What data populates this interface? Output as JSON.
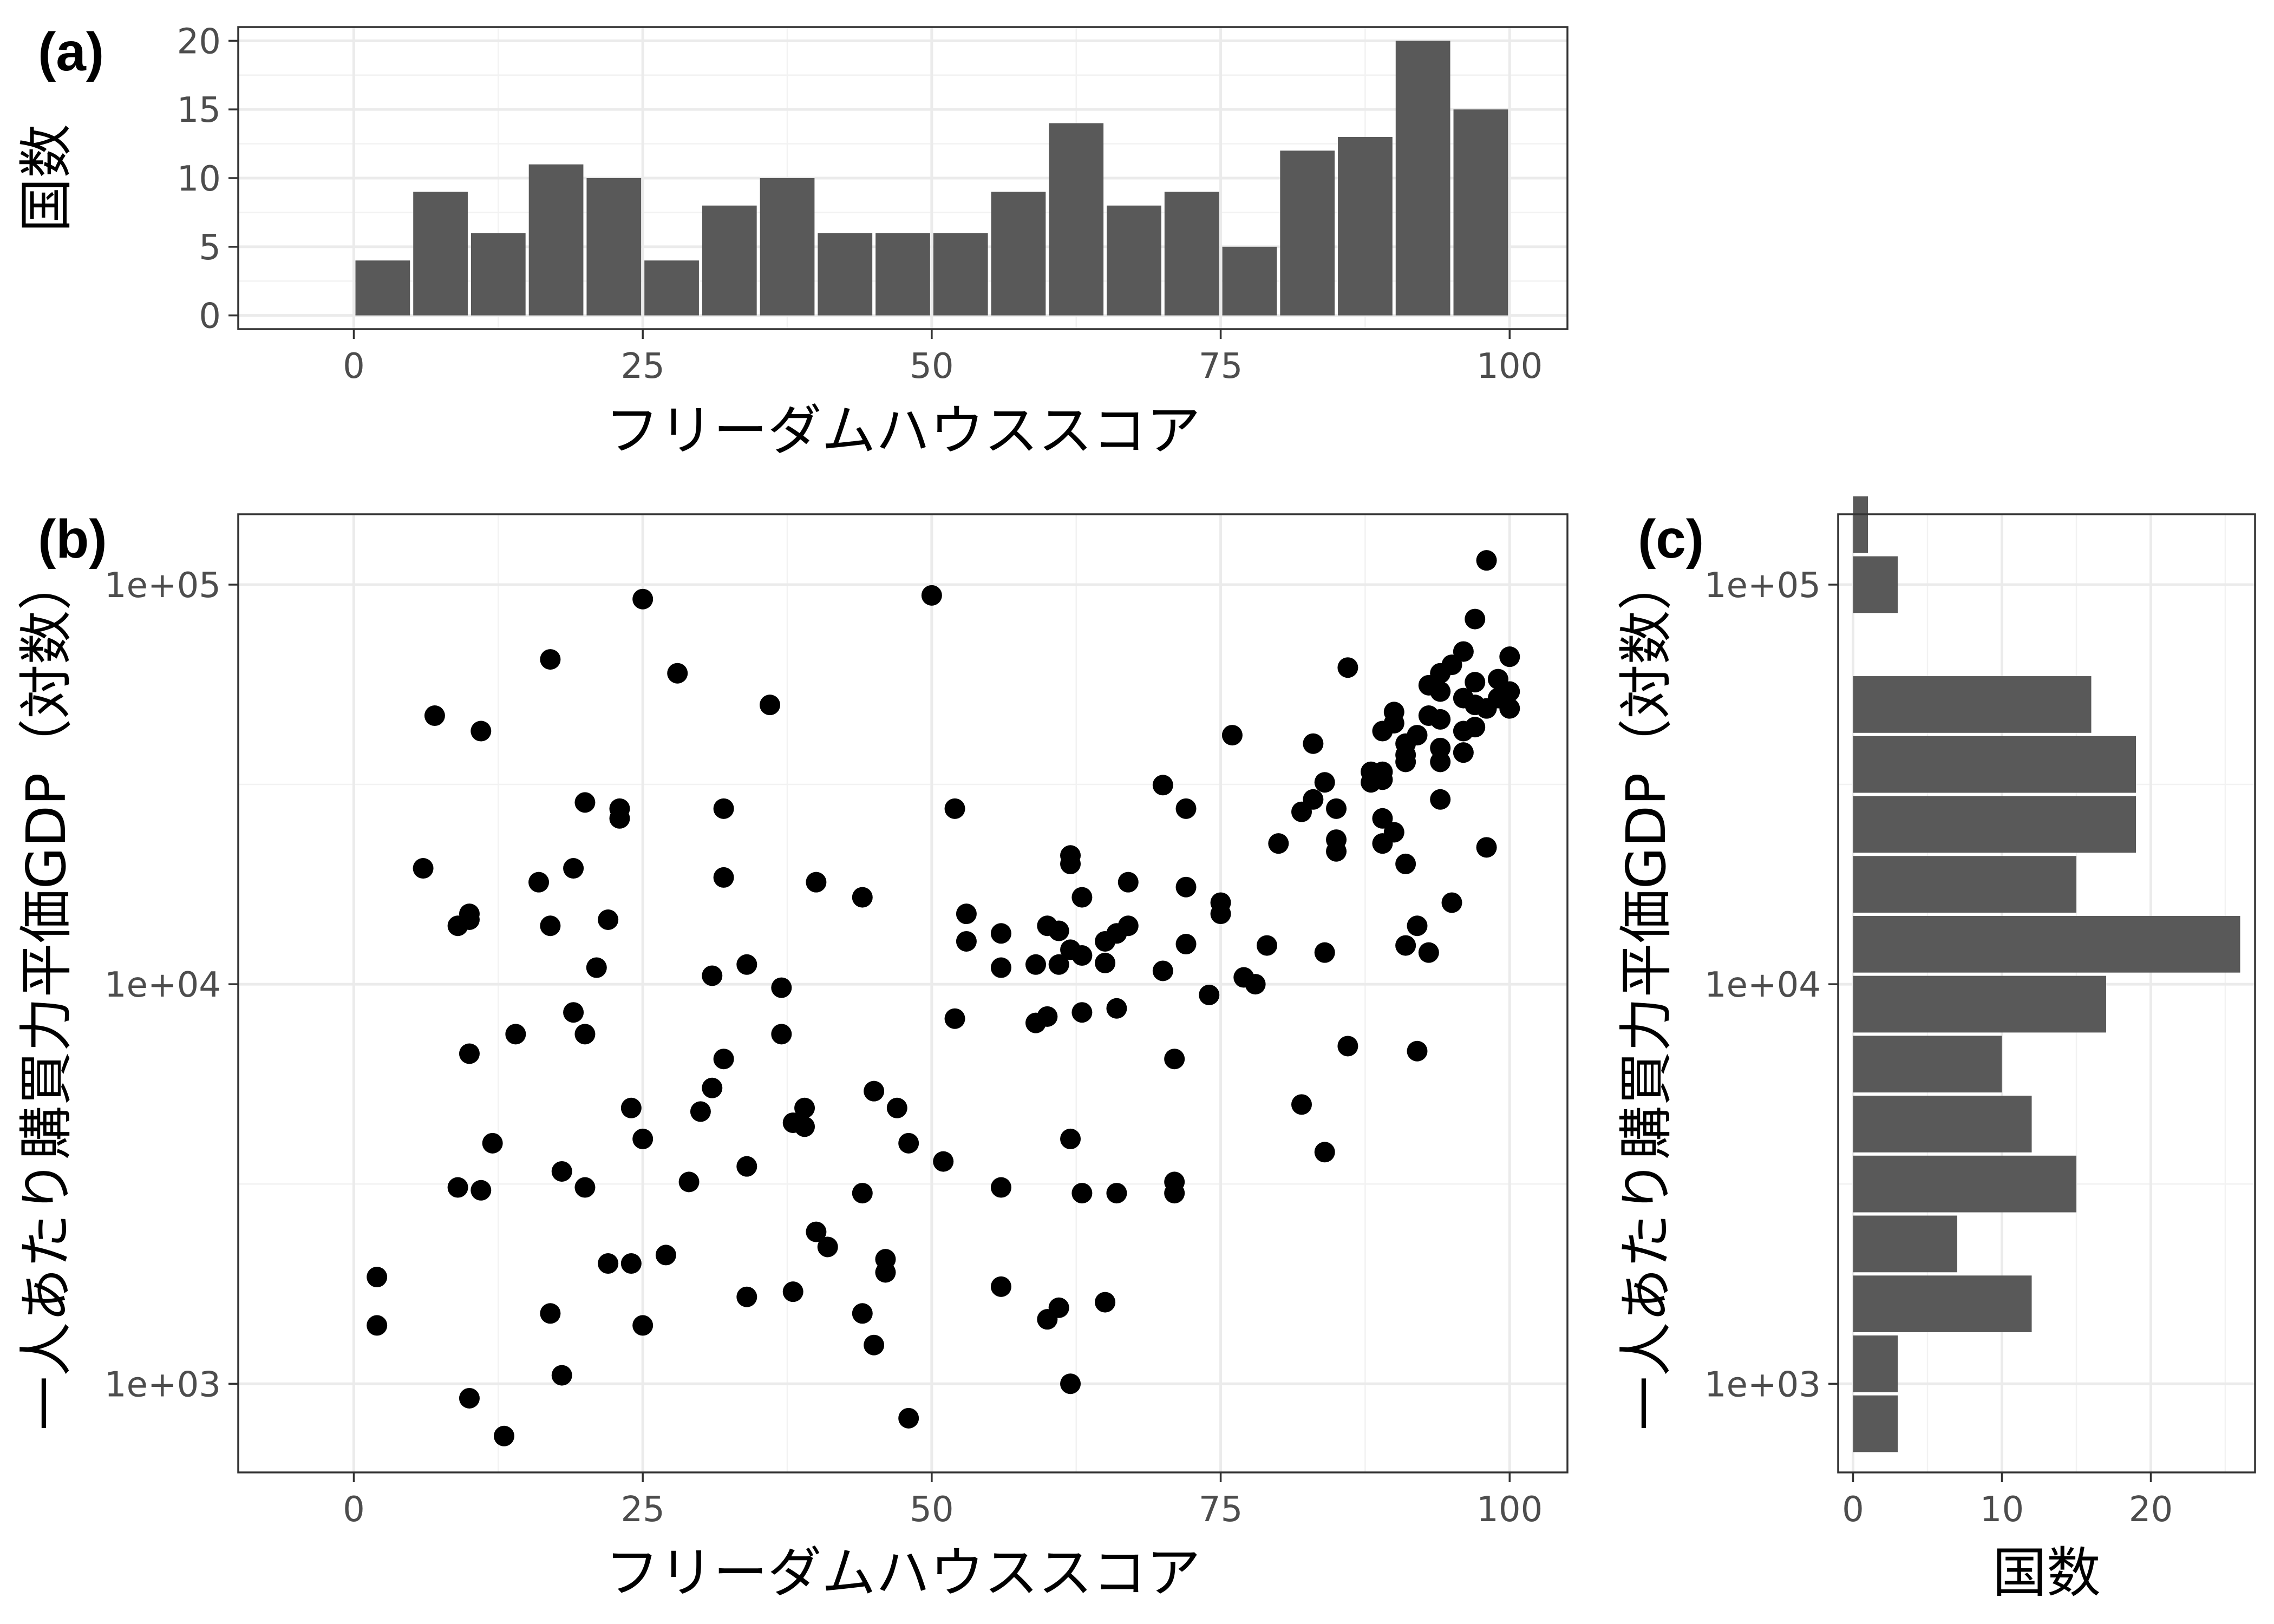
{
  "colors": {
    "bar": "#595959",
    "point": "#000000",
    "grid_major": "#ebebeb",
    "grid_minor": "#f2f2f2",
    "frame": "#333333",
    "tick_text": "#4d4d4d"
  },
  "chart_data": [
    {
      "panel_label": "(a)",
      "type": "bar",
      "xlabel": "フリーダムハウススコア",
      "ylabel": "国数",
      "xlim": [
        -10,
        105
      ],
      "ylim": [
        -1,
        21
      ],
      "x_ticks": [
        0,
        25,
        50,
        75,
        100
      ],
      "x_tick_labels": [
        "0",
        "25",
        "50",
        "75",
        "100"
      ],
      "y_ticks": [
        0,
        5,
        10,
        15,
        20
      ],
      "y_tick_labels": [
        "0",
        "5",
        "10",
        "15",
        "20"
      ],
      "bin_width": 5,
      "bins": [
        {
          "x0": 0,
          "x1": 5,
          "count": 4
        },
        {
          "x0": 5,
          "x1": 10,
          "count": 9
        },
        {
          "x0": 10,
          "x1": 15,
          "count": 6
        },
        {
          "x0": 15,
          "x1": 20,
          "count": 11
        },
        {
          "x0": 20,
          "x1": 25,
          "count": 10
        },
        {
          "x0": 25,
          "x1": 30,
          "count": 4
        },
        {
          "x0": 30,
          "x1": 35,
          "count": 8
        },
        {
          "x0": 35,
          "x1": 40,
          "count": 10
        },
        {
          "x0": 40,
          "x1": 45,
          "count": 6
        },
        {
          "x0": 45,
          "x1": 50,
          "count": 6
        },
        {
          "x0": 50,
          "x1": 55,
          "count": 6
        },
        {
          "x0": 55,
          "x1": 60,
          "count": 9
        },
        {
          "x0": 60,
          "x1": 65,
          "count": 14
        },
        {
          "x0": 65,
          "x1": 70,
          "count": 8
        },
        {
          "x0": 70,
          "x1": 75,
          "count": 9
        },
        {
          "x0": 75,
          "x1": 80,
          "count": 5
        },
        {
          "x0": 80,
          "x1": 85,
          "count": 12
        },
        {
          "x0": 85,
          "x1": 90,
          "count": 13
        },
        {
          "x0": 90,
          "x1": 95,
          "count": 20
        },
        {
          "x0": 95,
          "x1": 100,
          "count": 15
        }
      ]
    },
    {
      "panel_label": "(b)",
      "type": "scatter",
      "xlabel": "フリーダムハウススコア",
      "ylabel": "一人あたり購買力平価GDP（対数）",
      "y_scale": "log10",
      "xlim": [
        -10,
        105
      ],
      "ylim": [
        600,
        150000
      ],
      "x_ticks": [
        0,
        25,
        50,
        75,
        100
      ],
      "x_tick_labels": [
        "0",
        "25",
        "50",
        "75",
        "100"
      ],
      "y_ticks": [
        1000,
        10000,
        100000
      ],
      "y_tick_labels": [
        "1e+03",
        "1e+04",
        "1e+05"
      ],
      "points": [
        [
          2,
          1850
        ],
        [
          2,
          1400
        ],
        [
          6,
          19500
        ],
        [
          7,
          47000
        ],
        [
          9,
          14000
        ],
        [
          9,
          3100
        ],
        [
          10,
          15000
        ],
        [
          10,
          14500
        ],
        [
          10,
          6700
        ],
        [
          10,
          920
        ],
        [
          11,
          43000
        ],
        [
          11,
          3050
        ],
        [
          12,
          4000
        ],
        [
          13,
          740
        ],
        [
          14,
          7500
        ],
        [
          16,
          18000
        ],
        [
          17,
          65000
        ],
        [
          17,
          14000
        ],
        [
          17,
          1500
        ],
        [
          18,
          3400
        ],
        [
          18,
          1050
        ],
        [
          19,
          19500
        ],
        [
          19,
          8500
        ],
        [
          20,
          28500
        ],
        [
          20,
          7500
        ],
        [
          20,
          3100
        ],
        [
          21,
          11000
        ],
        [
          22,
          14500
        ],
        [
          22,
          2000
        ],
        [
          23,
          27500
        ],
        [
          23,
          26000
        ],
        [
          24,
          4900
        ],
        [
          24,
          2000
        ],
        [
          25,
          92000
        ],
        [
          25,
          4100
        ],
        [
          25,
          1400
        ],
        [
          27,
          2100
        ],
        [
          28,
          60000
        ],
        [
          29,
          3200
        ],
        [
          30,
          4800
        ],
        [
          31,
          10500
        ],
        [
          31,
          5500
        ],
        [
          32,
          27500
        ],
        [
          32,
          18500
        ],
        [
          32,
          6500
        ],
        [
          34,
          11200
        ],
        [
          34,
          3500
        ],
        [
          34,
          1650
        ],
        [
          36,
          50000
        ],
        [
          37,
          9800
        ],
        [
          37,
          7500
        ],
        [
          38,
          4500
        ],
        [
          38,
          1700
        ],
        [
          39,
          4900
        ],
        [
          39,
          4400
        ],
        [
          40,
          18000
        ],
        [
          40,
          2400
        ],
        [
          41,
          2200
        ],
        [
          44,
          16500
        ],
        [
          44,
          3000
        ],
        [
          44,
          1500
        ],
        [
          45,
          5400
        ],
        [
          45,
          1250
        ],
        [
          46,
          2050
        ],
        [
          46,
          1900
        ],
        [
          47,
          4900
        ],
        [
          48,
          4000
        ],
        [
          48,
          820
        ],
        [
          50,
          94000
        ],
        [
          51,
          3600
        ],
        [
          52,
          27500
        ],
        [
          52,
          8200
        ],
        [
          53,
          15000
        ],
        [
          53,
          12800
        ],
        [
          56,
          13400
        ],
        [
          56,
          11000
        ],
        [
          56,
          3100
        ],
        [
          56,
          1750
        ],
        [
          59,
          11200
        ],
        [
          59,
          8000
        ],
        [
          60,
          14000
        ],
        [
          60,
          8300
        ],
        [
          60,
          1450
        ],
        [
          61,
          13600
        ],
        [
          61,
          11200
        ],
        [
          61,
          1550
        ],
        [
          62,
          21000
        ],
        [
          62,
          20000
        ],
        [
          62,
          12200
        ],
        [
          62,
          4100
        ],
        [
          62,
          1000
        ],
        [
          63,
          16500
        ],
        [
          63,
          11800
        ],
        [
          63,
          8500
        ],
        [
          63,
          3000
        ],
        [
          65,
          12800
        ],
        [
          65,
          11300
        ],
        [
          65,
          1600
        ],
        [
          66,
          13400
        ],
        [
          66,
          8700
        ],
        [
          66,
          3000
        ],
        [
          67,
          18000
        ],
        [
          67,
          14000
        ],
        [
          70,
          31500
        ],
        [
          70,
          10800
        ],
        [
          71,
          6500
        ],
        [
          71,
          3200
        ],
        [
          71,
          3000
        ],
        [
          72,
          27500
        ],
        [
          72,
          17500
        ],
        [
          72,
          12600
        ],
        [
          74,
          9400
        ],
        [
          75,
          16000
        ],
        [
          75,
          15000
        ],
        [
          76,
          42000
        ],
        [
          77,
          10400
        ],
        [
          78,
          10000
        ],
        [
          79,
          12500
        ],
        [
          80,
          22500
        ],
        [
          82,
          27000
        ],
        [
          82,
          5000
        ],
        [
          83,
          40000
        ],
        [
          83,
          29000
        ],
        [
          84,
          32000
        ],
        [
          84,
          12000
        ],
        [
          84,
          3800
        ],
        [
          85,
          27500
        ],
        [
          85,
          23000
        ],
        [
          85,
          21500
        ],
        [
          86,
          62000
        ],
        [
          86,
          7000
        ],
        [
          88,
          34000
        ],
        [
          88,
          32000
        ],
        [
          89,
          43000
        ],
        [
          89,
          34000
        ],
        [
          89,
          32500
        ],
        [
          89,
          26000
        ],
        [
          89,
          22500
        ],
        [
          90,
          48000
        ],
        [
          90,
          45000
        ],
        [
          90,
          24000
        ],
        [
          91,
          40000
        ],
        [
          91,
          37500
        ],
        [
          91,
          36000
        ],
        [
          91,
          20000
        ],
        [
          91,
          12500
        ],
        [
          92,
          42000
        ],
        [
          92,
          14000
        ],
        [
          92,
          6800
        ],
        [
          93,
          56000
        ],
        [
          93,
          47000
        ],
        [
          93,
          12000
        ],
        [
          94,
          60000
        ],
        [
          94,
          54000
        ],
        [
          94,
          46000
        ],
        [
          94,
          39000
        ],
        [
          94,
          36000
        ],
        [
          94,
          29000
        ],
        [
          95,
          63000
        ],
        [
          95,
          16000
        ],
        [
          96,
          68000
        ],
        [
          96,
          52000
        ],
        [
          96,
          43000
        ],
        [
          96,
          38000
        ],
        [
          97,
          82000
        ],
        [
          97,
          57000
        ],
        [
          97,
          50000
        ],
        [
          97,
          44000
        ],
        [
          98,
          115000
        ],
        [
          98,
          49000
        ],
        [
          98,
          22000
        ],
        [
          99,
          58000
        ],
        [
          99,
          52000
        ],
        [
          100,
          66000
        ],
        [
          100,
          54000
        ],
        [
          100,
          49000
        ]
      ]
    },
    {
      "panel_label": "(c)",
      "type": "bar",
      "orientation": "horizontal",
      "xlabel": "国数",
      "ylabel": "一人あたり購買力平価GDP（対数）",
      "y_scale": "log10",
      "xlim": [
        -1,
        27
      ],
      "ylim": [
        600,
        150000
      ],
      "x_ticks": [
        0,
        10,
        20
      ],
      "x_tick_labels": [
        "0",
        "10",
        "20"
      ],
      "y_ticks": [
        1000,
        10000,
        100000
      ],
      "y_tick_labels": [
        "1e+03",
        "1e+04",
        "1e+05"
      ],
      "bins": [
        {
          "log_lo": 2.825,
          "log_hi": 2.975,
          "count": 3
        },
        {
          "log_lo": 2.975,
          "log_hi": 3.125,
          "count": 3
        },
        {
          "log_lo": 3.125,
          "log_hi": 3.275,
          "count": 12
        },
        {
          "log_lo": 3.275,
          "log_hi": 3.425,
          "count": 7
        },
        {
          "log_lo": 3.425,
          "log_hi": 3.575,
          "count": 15
        },
        {
          "log_lo": 3.575,
          "log_hi": 3.725,
          "count": 12
        },
        {
          "log_lo": 3.725,
          "log_hi": 3.875,
          "count": 10
        },
        {
          "log_lo": 3.875,
          "log_hi": 4.025,
          "count": 17
        },
        {
          "log_lo": 4.025,
          "log_hi": 4.175,
          "count": 26
        },
        {
          "log_lo": 4.175,
          "log_hi": 4.325,
          "count": 15
        },
        {
          "log_lo": 4.325,
          "log_hi": 4.475,
          "count": 19
        },
        {
          "log_lo": 4.475,
          "log_hi": 4.625,
          "count": 19
        },
        {
          "log_lo": 4.625,
          "log_hi": 4.775,
          "count": 16
        },
        {
          "log_lo": 4.775,
          "log_hi": 4.925,
          "count": 0
        },
        {
          "log_lo": 4.925,
          "log_hi": 5.075,
          "count": 3
        },
        {
          "log_lo": 5.075,
          "log_hi": 5.225,
          "count": 1
        }
      ]
    }
  ]
}
